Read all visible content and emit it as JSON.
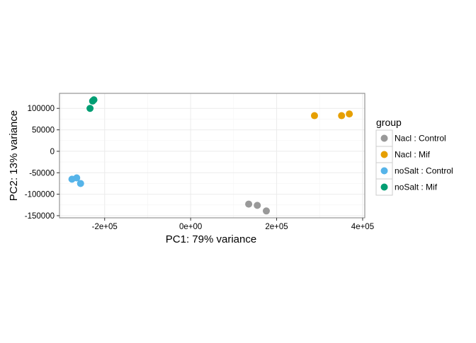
{
  "chart_data": {
    "type": "scatter",
    "xlabel": "PC1: 79% variance",
    "ylabel": "PC2: 13% variance",
    "xlim": [
      -305000,
      405000
    ],
    "ylim": [
      -155000,
      135000
    ],
    "x_ticks": [
      {
        "value": -200000,
        "label": "-2e+05"
      },
      {
        "value": 0,
        "label": "0e+00"
      },
      {
        "value": 200000,
        "label": "2e+05"
      },
      {
        "value": 400000,
        "label": "4e+05"
      }
    ],
    "y_ticks": [
      {
        "value": -150000,
        "label": "-150000"
      },
      {
        "value": -100000,
        "label": "-100000"
      },
      {
        "value": -50000,
        "label": "-50000"
      },
      {
        "value": 0,
        "label": "0"
      },
      {
        "value": 50000,
        "label": "50000"
      },
      {
        "value": 100000,
        "label": "100000"
      }
    ],
    "grid": true,
    "legend_title": "group",
    "legend_position": "right",
    "series": [
      {
        "name": "Nacl : Control",
        "color": "#999999",
        "points": [
          [
            135000,
            -123000
          ],
          [
            155000,
            -126000
          ],
          [
            176000,
            -139000
          ]
        ]
      },
      {
        "name": "Nacl : Mif",
        "color": "#E69F00",
        "points": [
          [
            288000,
            83000
          ],
          [
            351000,
            83000
          ],
          [
            369000,
            87000
          ]
        ]
      },
      {
        "name": "noSalt : Control",
        "color": "#56B4E9",
        "points": [
          [
            -276000,
            -65000
          ],
          [
            -265000,
            -62000
          ],
          [
            -256000,
            -75000
          ]
        ]
      },
      {
        "name": "noSalt : Mif",
        "color": "#009E73",
        "points": [
          [
            -234000,
            100000
          ],
          [
            -228000,
            117000
          ],
          [
            -225000,
            120000
          ]
        ]
      }
    ]
  }
}
